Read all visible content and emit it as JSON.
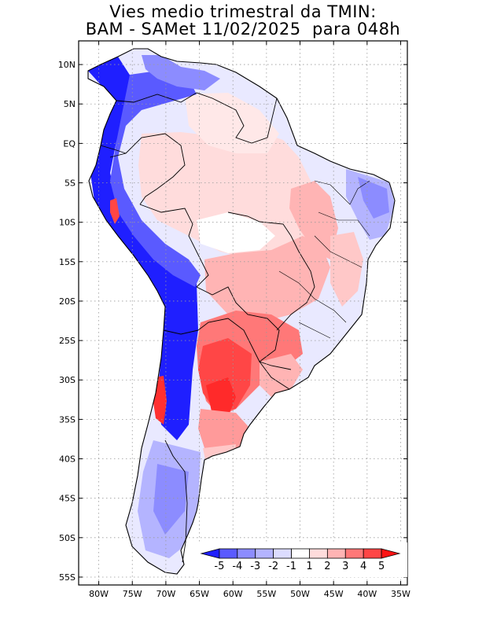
{
  "title": {
    "line1": "Vies medio trimestral da TMIN:",
    "line2": "BAM - SAMet 11/02/2025  para 048h"
  },
  "map": {
    "lon_range": [
      -83,
      -34
    ],
    "lat_range": [
      -56,
      13
    ],
    "lat_ticks": [
      {
        "value": 10,
        "label": "10N"
      },
      {
        "value": 5,
        "label": "5N"
      },
      {
        "value": 0,
        "label": "EQ"
      },
      {
        "value": -5,
        "label": "5S"
      },
      {
        "value": -10,
        "label": "10S"
      },
      {
        "value": -15,
        "label": "15S"
      },
      {
        "value": -20,
        "label": "20S"
      },
      {
        "value": -25,
        "label": "25S"
      },
      {
        "value": -30,
        "label": "30S"
      },
      {
        "value": -35,
        "label": "35S"
      },
      {
        "value": -40,
        "label": "40S"
      },
      {
        "value": -45,
        "label": "45S"
      },
      {
        "value": -50,
        "label": "50S"
      },
      {
        "value": -55,
        "label": "55S"
      }
    ],
    "lon_ticks": [
      {
        "value": -80,
        "label": "80W"
      },
      {
        "value": -75,
        "label": "75W"
      },
      {
        "value": -70,
        "label": "70W"
      },
      {
        "value": -65,
        "label": "65W"
      },
      {
        "value": -60,
        "label": "60W"
      },
      {
        "value": -55,
        "label": "55W"
      },
      {
        "value": -50,
        "label": "50W"
      },
      {
        "value": -45,
        "label": "45W"
      },
      {
        "value": -40,
        "label": "40W"
      },
      {
        "value": -35,
        "label": "35W"
      }
    ],
    "grid": "dotted"
  },
  "colorbar": {
    "labels": [
      "-5",
      "-4",
      "-3",
      "-2",
      "-1",
      "1",
      "2",
      "3",
      "4",
      "5"
    ],
    "colors": [
      "#1f1fff",
      "#5a5aff",
      "#8c8cff",
      "#b4b4ff",
      "#dcdcff",
      "#ffffff",
      "#ffdcdc",
      "#ffb4b4",
      "#ff7878",
      "#ff4646",
      "#ff1414"
    ]
  },
  "colors": {
    "strong_negative": "#1f1fff",
    "negative": "#8c8cff",
    "weak_negative": "#dcdcff",
    "weak_positive": "#ffdcdc",
    "positive": "#ff9a9a",
    "strong_positive": "#ff3030"
  }
}
